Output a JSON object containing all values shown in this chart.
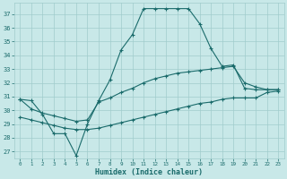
{
  "xlabel": "Humidex (Indice chaleur)",
  "bg_color": "#c8e8e8",
  "grid_color": "#a0cccc",
  "line_color": "#1a6b6b",
  "xlim": [
    -0.5,
    23.5
  ],
  "ylim": [
    26.5,
    37.8
  ],
  "yticks": [
    27,
    28,
    29,
    30,
    31,
    32,
    33,
    34,
    35,
    36,
    37
  ],
  "xticks": [
    0,
    1,
    2,
    3,
    4,
    5,
    6,
    7,
    8,
    9,
    10,
    11,
    12,
    13,
    14,
    15,
    16,
    17,
    18,
    19,
    20,
    21,
    22,
    23
  ],
  "hours": [
    0,
    1,
    2,
    3,
    4,
    5,
    6,
    7,
    8,
    9,
    10,
    11,
    12,
    13,
    14,
    15,
    16,
    17,
    18,
    19,
    20,
    21,
    22,
    23
  ],
  "line1": [
    30.8,
    30.7,
    29.7,
    28.3,
    28.3,
    26.7,
    29.0,
    30.7,
    32.2,
    34.4,
    35.5,
    37.4,
    37.4,
    37.4,
    37.4,
    37.4,
    36.3,
    34.5,
    33.2,
    33.3,
    31.6,
    31.5,
    31.5,
    31.5
  ],
  "line2": [
    30.8,
    30.1,
    29.8,
    29.6,
    29.4,
    29.2,
    29.3,
    30.6,
    30.9,
    31.3,
    31.6,
    32.0,
    32.3,
    32.5,
    32.7,
    32.8,
    32.9,
    33.0,
    33.1,
    33.2,
    32.0,
    31.7,
    31.5,
    31.5
  ],
  "line3": [
    29.5,
    29.3,
    29.1,
    28.9,
    28.7,
    28.6,
    28.6,
    28.7,
    28.9,
    29.1,
    29.3,
    29.5,
    29.7,
    29.9,
    30.1,
    30.3,
    30.5,
    30.6,
    30.8,
    30.9,
    30.9,
    30.9,
    31.3,
    31.4
  ]
}
